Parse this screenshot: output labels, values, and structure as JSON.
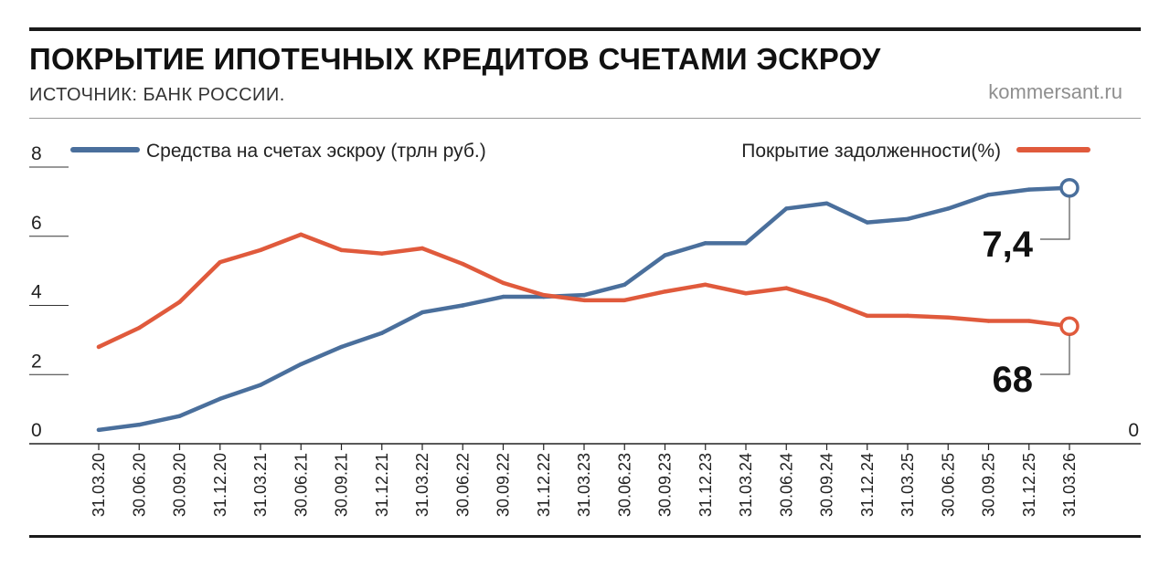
{
  "header": {
    "title": "ПОКРЫТИЕ ИПОТЕЧНЫХ КРЕДИТОВ СЧЕТАМИ ЭСКРОУ",
    "source": "ИСТОЧНИК: БАНК РОССИИ.",
    "site": "kommersant.ru"
  },
  "colors": {
    "escrow": "#4a6f9c",
    "coverage": "#e05a3c"
  },
  "chart_data": {
    "type": "line",
    "categories": [
      "31.03.20",
      "30.06.20",
      "30.09.20",
      "31.12.20",
      "31.03.21",
      "30.06.21",
      "30.09.21",
      "31.12.21",
      "31.03.22",
      "30.06.22",
      "30.09.22",
      "31.12.22",
      "31.03.23",
      "30.06.23",
      "30.09.23",
      "31.12.23",
      "31.03.24",
      "30.06.24",
      "30.09.24",
      "31.12.24",
      "31.03.25",
      "30.06.25",
      "30.09.25",
      "31.12.25",
      "31.03.26"
    ],
    "y_left": {
      "lim": [
        0,
        8
      ],
      "ticks": [
        "0",
        "2",
        "4",
        "6",
        "8"
      ]
    },
    "y_right": {
      "lim": [
        0,
        160
      ],
      "ticks": [
        "0",
        "40",
        "80",
        "120",
        "160"
      ]
    },
    "series": [
      {
        "name": "Средства на счетах эскроу (трлн руб.)",
        "axis": "left",
        "color": "#4a6f9c",
        "values": [
          0.4,
          0.55,
          0.8,
          1.3,
          1.7,
          2.3,
          2.8,
          3.2,
          3.8,
          4.0,
          4.25,
          4.25,
          4.3,
          4.6,
          5.45,
          5.8,
          5.8,
          6.8,
          6.95,
          6.4,
          6.5,
          6.8,
          7.2,
          7.35,
          7.4
        ],
        "callout": "7,4"
      },
      {
        "name": "Покрытие задолженности(%)",
        "axis": "right",
        "color": "#e05a3c",
        "values": [
          56,
          67,
          82,
          105,
          112,
          121,
          112,
          110,
          113,
          104,
          93,
          86,
          83,
          83,
          88,
          92,
          87,
          90,
          83,
          74,
          74,
          73,
          71,
          71,
          68
        ],
        "callout": "68"
      }
    ],
    "grid": false,
    "legend": {
      "left": "top-left",
      "right": "top-right"
    }
  }
}
